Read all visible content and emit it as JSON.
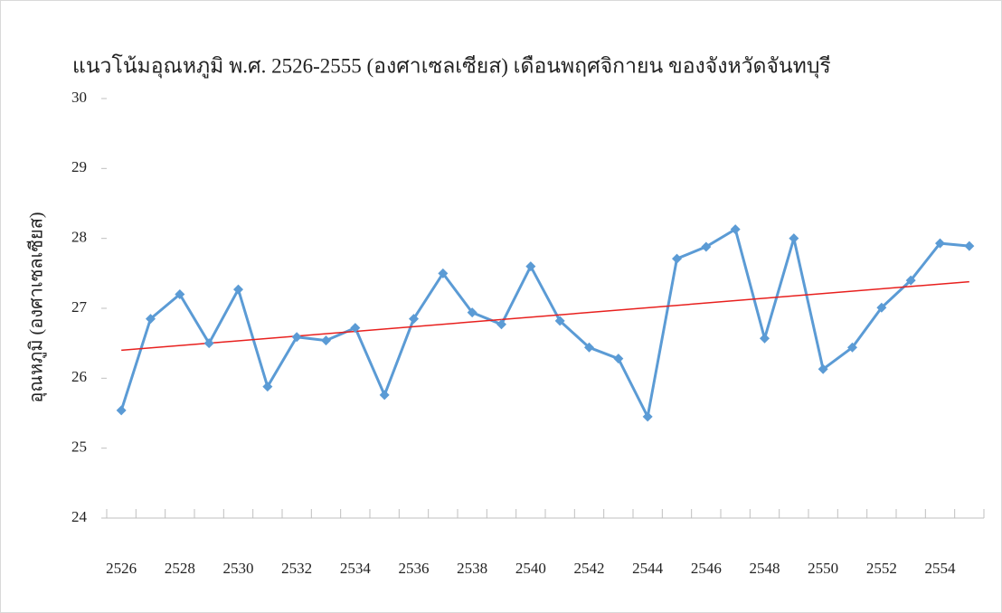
{
  "chart_data": {
    "type": "line",
    "title": "แนวโน้มอุณหภูมิ พ.ศ. 2526-2555 (องศาเซลเซียส) เดือนพฤศจิกายน ของจังหวัดจันทบุรี",
    "y_label": "อุณหภูมิ (องศาเซลเซียส)",
    "categories": [
      "2526",
      null,
      "2528",
      null,
      "2530",
      null,
      "2532",
      null,
      "2534",
      null,
      "2536",
      null,
      "2538",
      null,
      "2540",
      null,
      "2542",
      null,
      "2544",
      null,
      "2546",
      null,
      "2548",
      null,
      "2550",
      null,
      "2552",
      null,
      "2554",
      null
    ],
    "series": [
      {
        "color": "#5b9bd5",
        "values": [
          25.54,
          26.85,
          27.2,
          26.5,
          27.27,
          25.88,
          26.59,
          26.54,
          26.72,
          25.76,
          26.85,
          27.5,
          26.94,
          26.77,
          27.6,
          26.82,
          26.44,
          26.28,
          25.45,
          27.71,
          27.88,
          28.13,
          26.57,
          28.0,
          26.13,
          26.44,
          27.01,
          27.4,
          27.93,
          27.89
        ]
      }
    ],
    "trendline": {
      "color": "#e8201e",
      "start": 26.4,
      "end": 27.38
    },
    "ylim": [
      24,
      30
    ],
    "yticks": [
      24,
      25,
      26,
      27,
      28,
      29,
      30
    ],
    "grid": false
  }
}
